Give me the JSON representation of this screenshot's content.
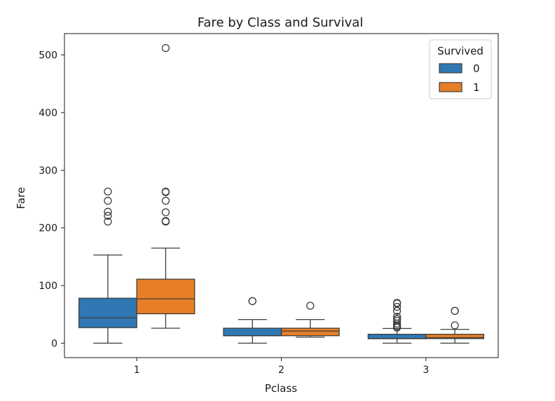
{
  "chart_data": {
    "type": "boxplot",
    "title": "Fare by Class and Survival",
    "xlabel": "Pclass",
    "ylabel": "Fare",
    "ylim": [
      -25,
      537
    ],
    "yticks": [
      0,
      100,
      200,
      300,
      400,
      500
    ],
    "categories": [
      "1",
      "2",
      "3"
    ],
    "legend": {
      "title": "Survived",
      "placement": "top-right"
    },
    "grid": false,
    "series": [
      {
        "name": "0",
        "color": "#2f78b4",
        "boxes": [
          {
            "whisker_low": 0,
            "q1": 27,
            "median": 44,
            "q3": 78,
            "whisker_high": 153,
            "outliers": [
              211,
              221,
              228,
              247,
              263
            ]
          },
          {
            "whisker_low": 0,
            "q1": 13,
            "median": 13,
            "q3": 26,
            "whisker_high": 41,
            "outliers": [
              73,
              73
            ]
          },
          {
            "whisker_low": 0,
            "q1": 7.8,
            "median": 8,
            "q3": 15.5,
            "whisker_high": 25.5,
            "outliers": [
              27,
              29,
              31,
              34,
              39,
              42,
              46,
              56,
              63,
              69,
              70
            ]
          }
        ]
      },
      {
        "name": "1",
        "color": "#e77f26",
        "boxes": [
          {
            "whisker_low": 26,
            "q1": 51,
            "median": 77,
            "q3": 111,
            "whisker_high": 165,
            "outliers": [
              211,
              212,
              227,
              247,
              262,
              263,
              512
            ]
          },
          {
            "whisker_low": 10.5,
            "q1": 13,
            "median": 21,
            "q3": 26,
            "whisker_high": 41,
            "outliers": [
              65
            ]
          },
          {
            "whisker_low": 0,
            "q1": 8,
            "median": 9.5,
            "q3": 15.5,
            "whisker_high": 24,
            "outliers": [
              31,
              56,
              56
            ]
          }
        ]
      }
    ]
  }
}
